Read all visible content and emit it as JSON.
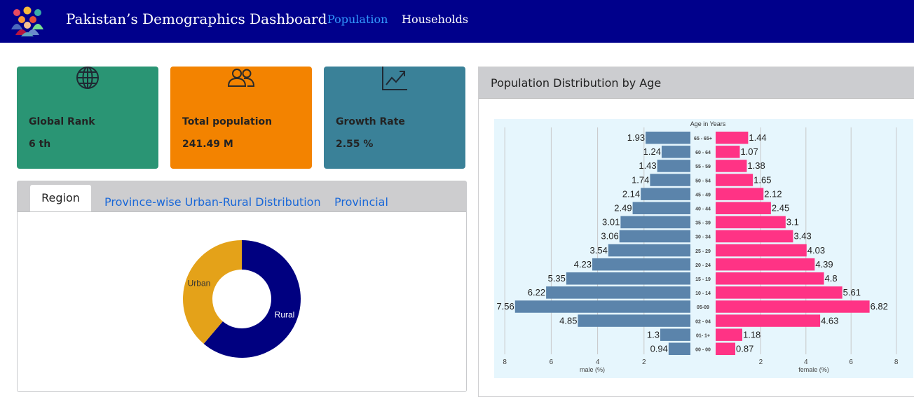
{
  "navbar": {
    "brand": "Pakistan’s Demographics Dashboard",
    "links": [
      "Population",
      "Households"
    ],
    "active": "Population",
    "logo_icon": "people-group-icon"
  },
  "cards": [
    {
      "label": "Global Rank",
      "value": "6 th",
      "icon": "globe-icon",
      "color": "#2a9574"
    },
    {
      "label": "Total population",
      "value": "241.49 M",
      "icon": "people-icon",
      "color": "#f38300"
    },
    {
      "label": "Growth Rate",
      "value": "2.55 %",
      "icon": "line-chart-icon",
      "color": "#3a8198"
    }
  ],
  "tabs": {
    "items": [
      "Region",
      "Province-wise Urban-Rural Distribution",
      "Provincial"
    ],
    "active": "Region"
  },
  "population_panel": {
    "title": "Population Distribution by Age"
  },
  "chart_data": [
    {
      "type": "pie",
      "donut": true,
      "labels": [
        "Rural",
        "Urban"
      ],
      "values": [
        61.2,
        38.8
      ],
      "colors": [
        "#000080",
        "#e4a219"
      ]
    },
    {
      "type": "bar",
      "orientation": "horizontal",
      "title": "Age in Years",
      "categories": [
        "65 - 65+",
        "60 - 64",
        "55 - 59",
        "50 - 54",
        "45 - 49",
        "40 - 44",
        "35 - 39",
        "30 - 34",
        "25 - 29",
        "20 - 24",
        "15 - 19",
        "10 - 14",
        "05-09",
        "02 - 04",
        "01- 1+",
        "00 - 00"
      ],
      "series": [
        {
          "name": "male (%)",
          "values": [
            1.93,
            1.24,
            1.43,
            1.74,
            2.14,
            2.49,
            3.01,
            3.06,
            3.54,
            4.23,
            5.35,
            6.22,
            7.56,
            4.85,
            1.3,
            0.94
          ],
          "color": "#5b84ab"
        },
        {
          "name": "female (%)",
          "values": [
            1.44,
            1.07,
            1.38,
            1.65,
            2.12,
            2.45,
            3.1,
            3.43,
            4.03,
            4.39,
            4.8,
            5.61,
            6.82,
            4.63,
            1.18,
            0.87
          ],
          "color": "#ff3385"
        }
      ],
      "xlabel_left": "male (%)",
      "xlabel_right": "female (%)",
      "left_ticks": [
        "8",
        "6",
        "4",
        "2"
      ],
      "right_ticks": [
        "2",
        "4",
        "6",
        "8"
      ],
      "xlim": [
        0,
        8
      ],
      "background": "#e6f6fd"
    }
  ]
}
